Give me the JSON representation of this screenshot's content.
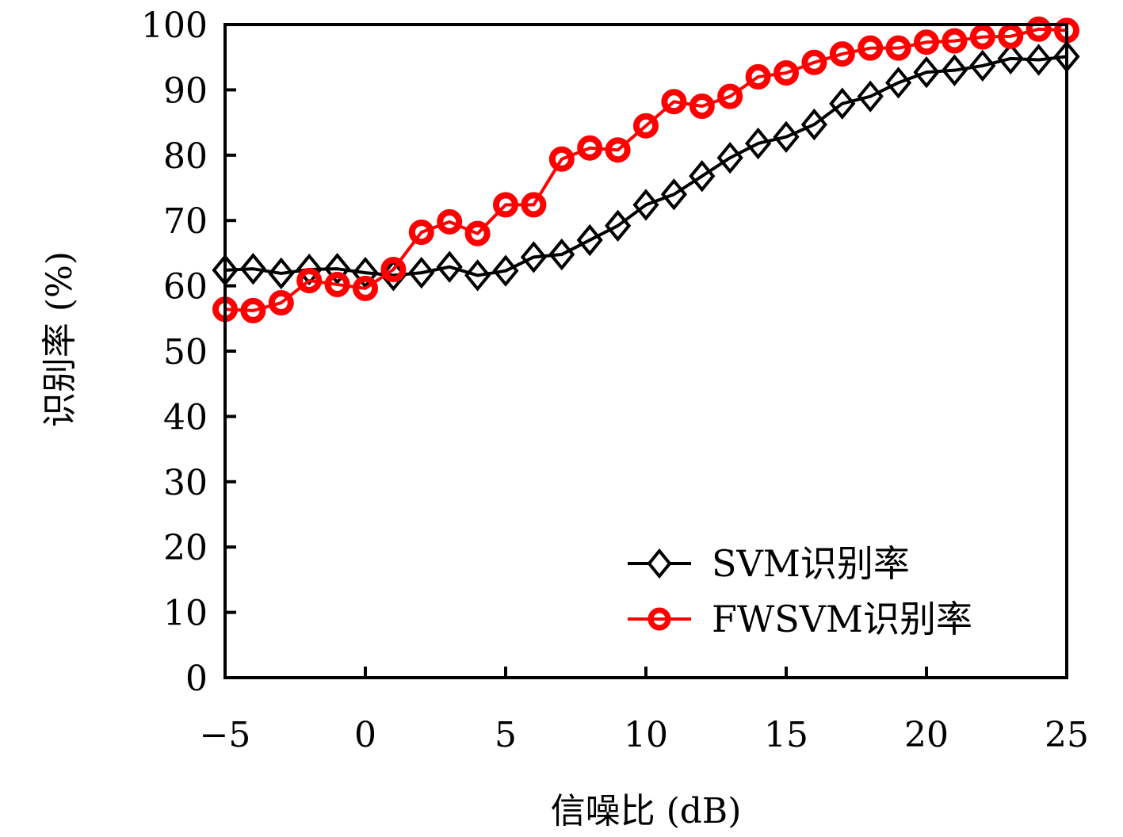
{
  "chart_data": {
    "type": "line",
    "title": "",
    "xlabel": "信噪比 (dB)",
    "ylabel": "识别率 (%)",
    "xlim": [
      -5,
      25
    ],
    "ylim": [
      0,
      100
    ],
    "xticks": [
      -5,
      0,
      5,
      10,
      15,
      20,
      25
    ],
    "xtick_labels": [
      "−5",
      "0",
      "5",
      "10",
      "15",
      "20",
      "25"
    ],
    "yticks": [
      0,
      10,
      20,
      30,
      40,
      50,
      60,
      70,
      80,
      90,
      100
    ],
    "ytick_labels": [
      "0",
      "10",
      "20",
      "30",
      "40",
      "50",
      "60",
      "70",
      "80",
      "90",
      "100"
    ],
    "grid": false,
    "legend_position": "bottom-right",
    "x": [
      -5,
      -4,
      -3,
      -2,
      -1,
      0,
      1,
      2,
      3,
      4,
      5,
      6,
      7,
      8,
      9,
      10,
      11,
      12,
      13,
      14,
      15,
      16,
      17,
      18,
      19,
      20,
      21,
      22,
      23,
      24,
      25
    ],
    "series": [
      {
        "name": "SVM识别率",
        "color": "#000000",
        "marker": "diamond",
        "values": [
          62.4,
          62.6,
          61.9,
          62.5,
          62.6,
          62.0,
          61.6,
          62.0,
          62.9,
          61.6,
          62.3,
          64.4,
          64.8,
          67.0,
          69.2,
          72.4,
          74.0,
          76.8,
          79.6,
          81.8,
          82.8,
          84.7,
          87.9,
          89.0,
          91.1,
          92.7,
          93.0,
          93.7,
          94.8,
          94.6,
          95.1
        ]
      },
      {
        "name": "FWSVM识别率",
        "color": "#ff0000",
        "marker": "circle",
        "values": [
          56.4,
          56.2,
          57.4,
          60.8,
          60.2,
          59.6,
          62.5,
          68.2,
          69.8,
          68.0,
          72.4,
          72.4,
          79.4,
          81.1,
          80.8,
          84.5,
          88.2,
          87.5,
          89.0,
          92.0,
          92.6,
          94.2,
          95.5,
          96.4,
          96.4,
          97.3,
          97.5,
          98.1,
          98.2,
          99.3,
          99.1
        ]
      }
    ]
  }
}
